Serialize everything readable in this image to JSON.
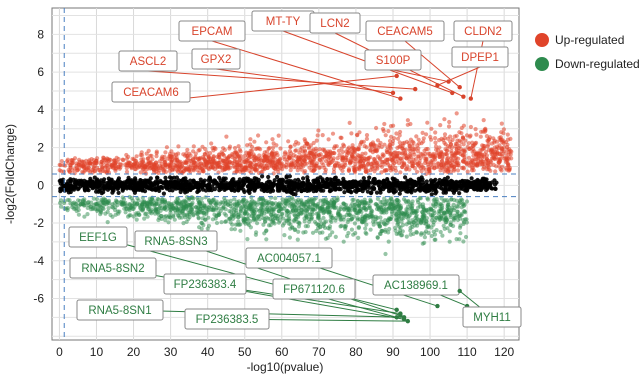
{
  "chart_data": {
    "type": "scatter",
    "title": "",
    "xlabel": "-log10(pvalue)",
    "ylabel": "-log2(FoldChange)",
    "xlim": [
      -2,
      124
    ],
    "ylim": [
      -8.2,
      9.4
    ],
    "xticks": [
      0,
      10,
      20,
      30,
      40,
      50,
      60,
      70,
      80,
      90,
      100,
      110,
      120
    ],
    "yticks": [
      -6,
      -4,
      -2,
      0,
      2,
      4,
      6,
      8
    ],
    "grid": true,
    "thresholds": {
      "x": 1.3,
      "y": [
        0.6,
        -0.6
      ]
    },
    "legend": {
      "placement": "right",
      "entries": [
        {
          "label": "Up-regulated",
          "color": "#e0442a"
        },
        {
          "label": "Down-regulated",
          "color": "#2e8b4e"
        }
      ]
    },
    "colors": {
      "up": "#e0442a",
      "down": "#2e8b4e",
      "ns": "#000000",
      "threshold": "#4a7fc1"
    },
    "up_genes": [
      {
        "label": "EPCAM",
        "x": 92,
        "y": 4.6
      },
      {
        "label": "MT-TY",
        "x": 106,
        "y": 4.9
      },
      {
        "label": "LCN2",
        "x": 109,
        "y": 4.7
      },
      {
        "label": "CEACAM5",
        "x": 108,
        "y": 5.2
      },
      {
        "label": "CLDN2",
        "x": 111,
        "y": 4.6
      },
      {
        "label": "ASCL2",
        "x": 96,
        "y": 5.1
      },
      {
        "label": "GPX2",
        "x": 90,
        "y": 4.9
      },
      {
        "label": "S100P",
        "x": 105,
        "y": 5.5
      },
      {
        "label": "DPEP1",
        "x": 102,
        "y": 5.3
      },
      {
        "label": "CEACAM6",
        "x": 91,
        "y": 5.8
      }
    ],
    "down_genes": [
      {
        "label": "EEF1G",
        "x": 91,
        "y": -7.0
      },
      {
        "label": "RNA5-8SN3",
        "x": 92,
        "y": -6.9
      },
      {
        "label": "RNA5-8SN2",
        "x": 93,
        "y": -7.1
      },
      {
        "label": "AC004057.1",
        "x": 102,
        "y": -6.4
      },
      {
        "label": "FP236383.4",
        "x": 92,
        "y": -6.8
      },
      {
        "label": "FP671120.6",
        "x": 91,
        "y": -6.6
      },
      {
        "label": "AC138969.1",
        "x": 110,
        "y": -6.4
      },
      {
        "label": "RNA5-8SN1",
        "x": 93,
        "y": -7.0
      },
      {
        "label": "FP236383.5",
        "x": 94,
        "y": -7.2
      },
      {
        "label": "MYH11",
        "x": 108,
        "y": -5.6
      }
    ]
  }
}
